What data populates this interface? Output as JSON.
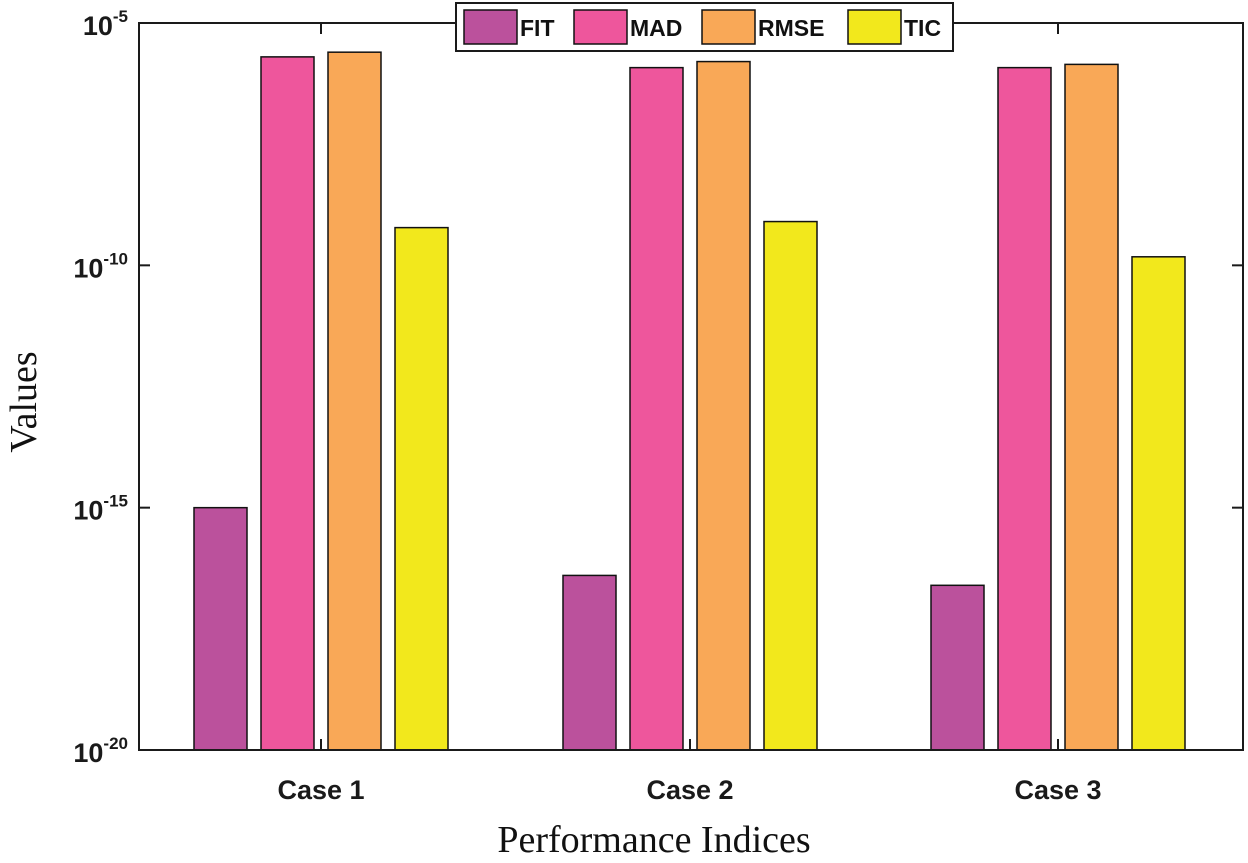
{
  "chart_data": {
    "type": "bar",
    "scale": "log",
    "categories": [
      "Case 1",
      "Case 2",
      "Case 3"
    ],
    "series": [
      {
        "name": "FIT",
        "color": "#bb519c",
        "values": [
          1e-15,
          4e-17,
          2.5e-17
        ]
      },
      {
        "name": "MAD",
        "color": "#ee569c",
        "values": [
          2e-06,
          1.2e-06,
          1.2e-06
        ]
      },
      {
        "name": "RMSE",
        "color": "#f9a857",
        "values": [
          2.5e-06,
          1.6e-06,
          1.4e-06
        ]
      },
      {
        "name": "TIC",
        "color": "#f2e81c",
        "values": [
          6e-10,
          8e-10,
          1.5e-10
        ]
      }
    ],
    "xlabel": "Performance Indices",
    "ylabel": "Values",
    "ylim_exp": [
      -20,
      -5
    ],
    "yticks": [
      {
        "base": "10",
        "exp": "-5"
      },
      {
        "base": "10",
        "exp": "-10"
      },
      {
        "base": "10",
        "exp": "-15"
      },
      {
        "base": "10",
        "exp": "-20"
      }
    ],
    "legend_position": "top-center",
    "grid": false
  }
}
